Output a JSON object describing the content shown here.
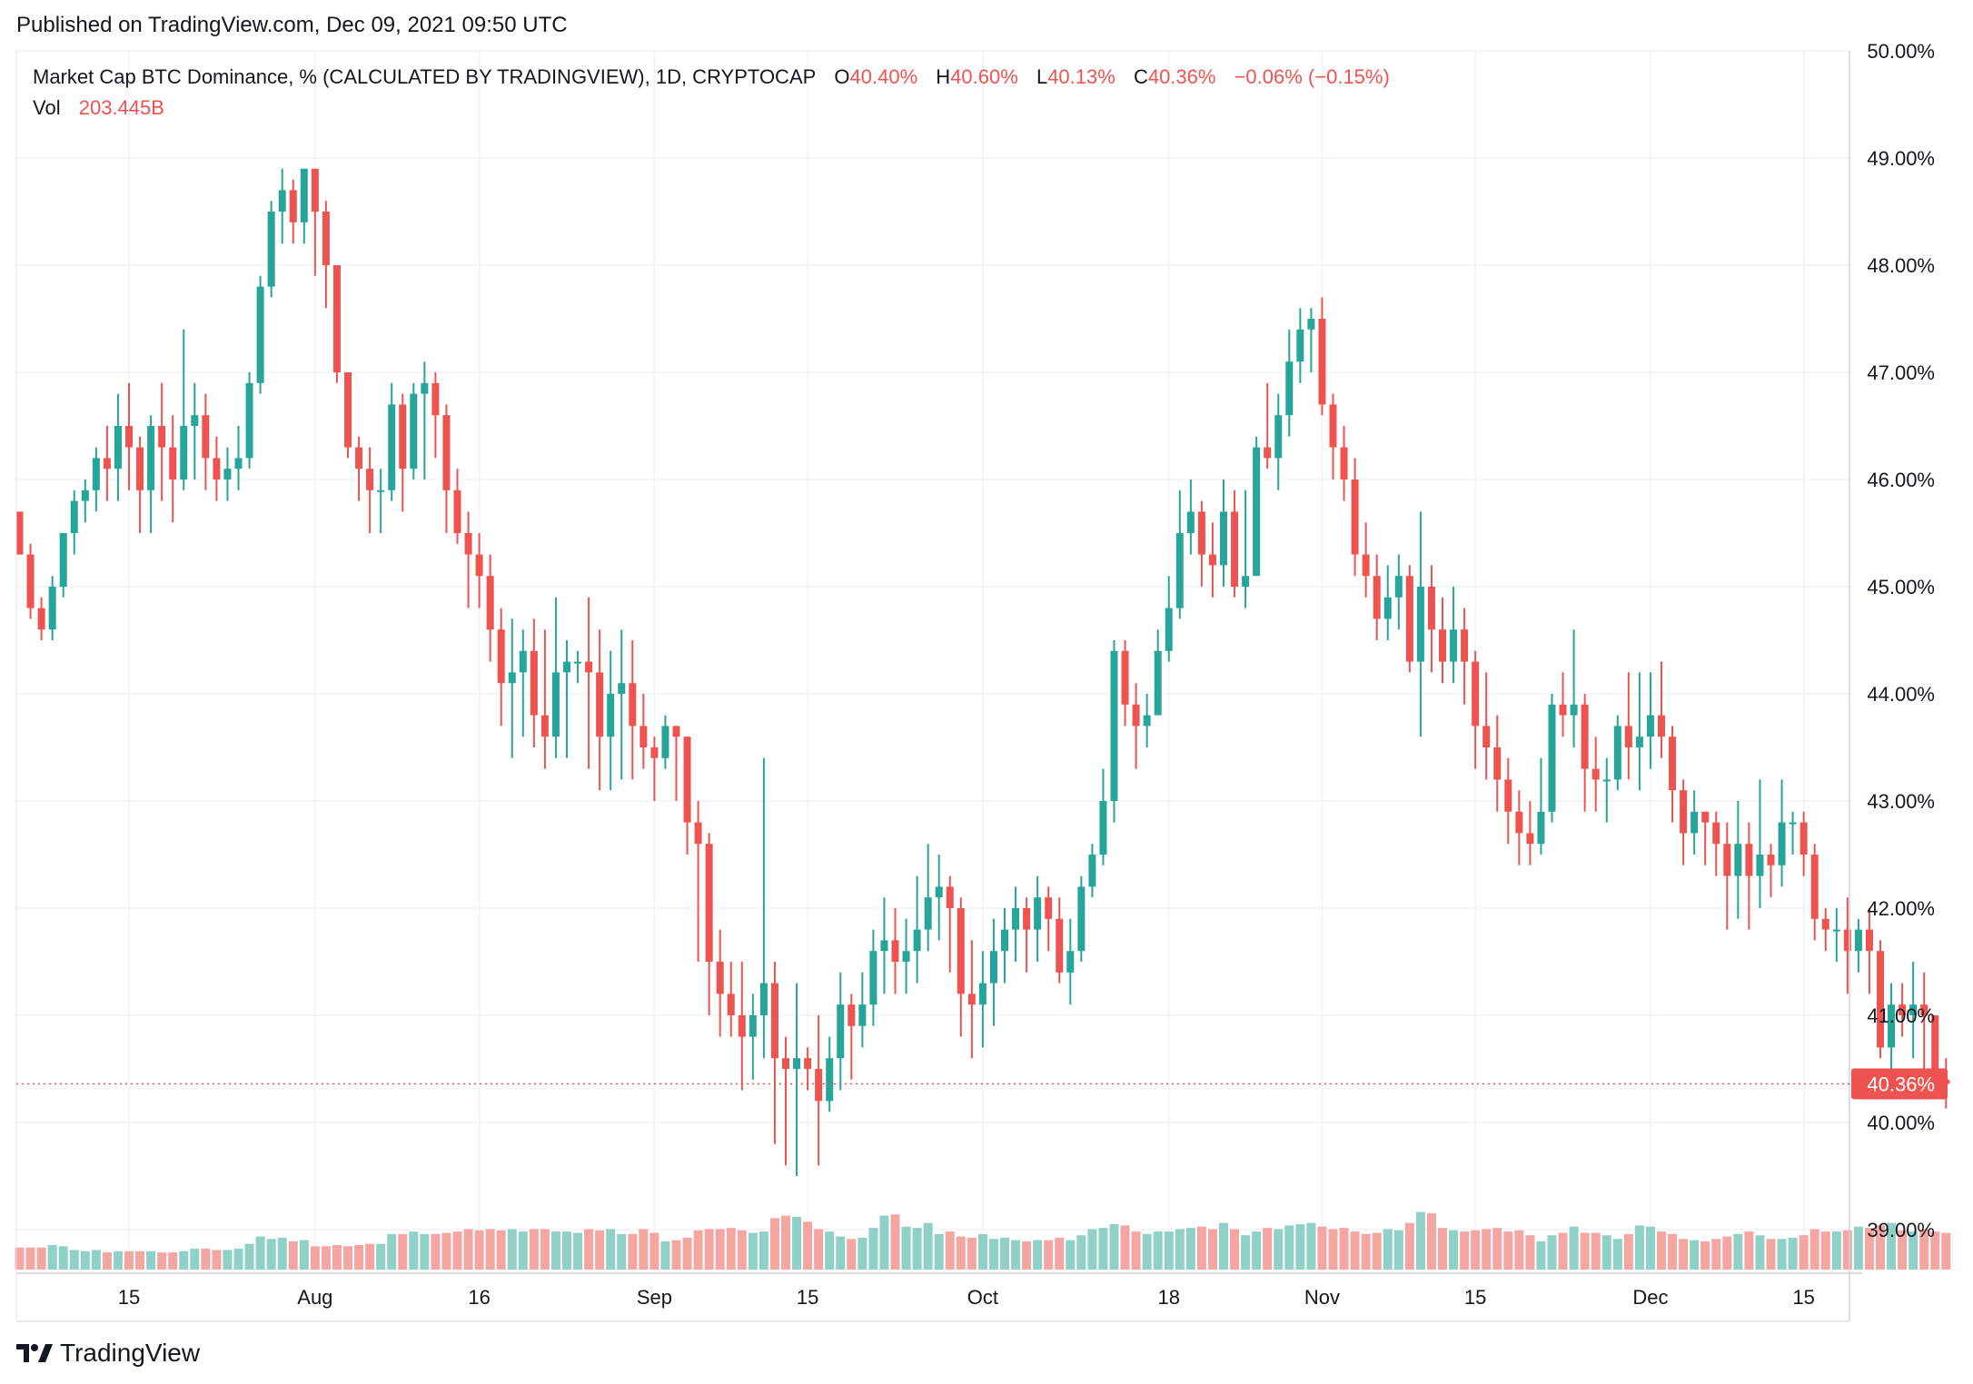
{
  "header": {
    "published": "Published on TradingView.com, Dec 09, 2021 09:50 UTC"
  },
  "legend": {
    "title": "Market Cap BTC Dominance, % (CALCULATED BY TRADINGVIEW), 1D, CRYPTOCAP",
    "o_label": "O",
    "o_value": "40.40%",
    "h_label": "H",
    "h_value": "40.60%",
    "l_label": "L",
    "l_value": "40.13%",
    "c_label": "C",
    "c_value": "40.36%",
    "change": "−0.06% (−0.15%)",
    "vol_label": "Vol",
    "vol_value": "203.445B"
  },
  "footer": {
    "brand": "TradingView"
  },
  "colors": {
    "up": "#26a69a",
    "down": "#ef5350",
    "vol_up": "#8fd0c7",
    "vol_down": "#f5a5a2",
    "grid": "#f0f3fa",
    "axis_text": "#131722",
    "price_line": "#ef5350"
  },
  "chart_data": {
    "type": "candlestick",
    "title": "Market Cap BTC Dominance, % (CALCULATED BY TRADINGVIEW), 1D, CRYPTOCAP",
    "ylim": [
      38.6,
      50.1
    ],
    "y_ticks": [
      "50.00%",
      "49.00%",
      "48.00%",
      "47.00%",
      "46.00%",
      "45.00%",
      "44.00%",
      "43.00%",
      "42.00%",
      "41.00%",
      "40.00%",
      "39.00%"
    ],
    "x_ticks": [
      {
        "label": "15",
        "day": 0
      },
      {
        "label": "Aug",
        "day": 17
      },
      {
        "label": "16",
        "day": 32
      },
      {
        "label": "Sep",
        "day": 48
      },
      {
        "label": "15",
        "day": 62
      },
      {
        "label": "Oct",
        "day": 78
      },
      {
        "label": "18",
        "day": 95
      },
      {
        "label": "Nov",
        "day": 109
      },
      {
        "label": "15",
        "day": 123
      },
      {
        "label": "Dec",
        "day": 139
      },
      {
        "label": "15",
        "day": 153
      }
    ],
    "first_day": -10,
    "last_price": "40.36%",
    "last_close": 40.36,
    "volume_unit": "B",
    "volume_max": 200,
    "candles": [
      [
        45.7,
        45.3,
        45.7,
        45.3,
        18
      ],
      [
        45.3,
        44.8,
        45.4,
        44.7,
        18
      ],
      [
        44.8,
        44.6,
        44.9,
        44.5,
        18
      ],
      [
        44.6,
        45.0,
        45.1,
        44.5,
        20
      ],
      [
        45.0,
        45.5,
        45.5,
        44.9,
        19
      ],
      [
        45.5,
        45.8,
        45.9,
        45.3,
        16
      ],
      [
        45.8,
        45.9,
        46.0,
        45.6,
        15
      ],
      [
        45.9,
        46.2,
        46.3,
        45.7,
        16
      ],
      [
        46.2,
        46.1,
        46.5,
        45.8,
        14
      ],
      [
        46.1,
        46.5,
        46.8,
        45.8,
        15
      ],
      [
        46.5,
        46.3,
        46.9,
        45.9,
        15
      ],
      [
        46.3,
        45.9,
        46.4,
        45.5,
        15
      ],
      [
        45.9,
        46.5,
        46.6,
        45.5,
        15
      ],
      [
        46.5,
        46.3,
        46.9,
        45.8,
        14
      ],
      [
        46.3,
        46.0,
        46.6,
        45.6,
        14
      ],
      [
        46.0,
        46.5,
        47.4,
        45.9,
        15
      ],
      [
        46.5,
        46.6,
        46.9,
        46.0,
        17
      ],
      [
        46.6,
        46.2,
        46.8,
        45.9,
        17
      ],
      [
        46.2,
        46.0,
        46.4,
        45.8,
        16
      ],
      [
        46.0,
        46.1,
        46.3,
        45.8,
        16
      ],
      [
        46.1,
        46.2,
        46.5,
        45.9,
        17
      ],
      [
        46.2,
        46.9,
        47.0,
        46.1,
        21
      ],
      [
        46.9,
        47.8,
        47.9,
        46.8,
        27
      ],
      [
        47.8,
        48.5,
        48.6,
        47.7,
        25
      ],
      [
        48.5,
        48.7,
        48.9,
        48.2,
        26
      ],
      [
        48.7,
        48.4,
        48.8,
        48.2,
        23
      ],
      [
        48.4,
        48.9,
        48.9,
        48.2,
        24
      ],
      [
        48.9,
        48.5,
        48.8,
        47.9,
        19
      ],
      [
        48.5,
        48.0,
        48.6,
        47.6,
        19
      ],
      [
        48.0,
        47.0,
        48.0,
        46.9,
        20
      ],
      [
        47.0,
        46.3,
        47.0,
        46.2,
        19
      ],
      [
        46.3,
        46.1,
        46.4,
        45.8,
        20
      ],
      [
        46.1,
        45.9,
        46.3,
        45.5,
        21
      ],
      [
        45.9,
        45.9,
        46.1,
        45.5,
        21
      ],
      [
        45.9,
        46.7,
        46.9,
        45.8,
        29
      ],
      [
        46.7,
        46.1,
        46.8,
        45.7,
        29
      ],
      [
        46.1,
        46.8,
        46.9,
        46.0,
        31
      ],
      [
        46.8,
        46.9,
        47.1,
        46.0,
        29
      ],
      [
        46.9,
        46.6,
        47.0,
        46.2,
        29
      ],
      [
        46.6,
        45.9,
        46.7,
        45.5,
        30
      ],
      [
        45.9,
        45.5,
        46.1,
        45.4,
        31
      ],
      [
        45.5,
        45.3,
        45.7,
        44.8,
        33
      ],
      [
        45.3,
        45.1,
        45.5,
        44.8,
        32
      ],
      [
        45.1,
        44.6,
        45.3,
        44.3,
        33
      ],
      [
        44.6,
        44.1,
        44.8,
        43.7,
        32
      ],
      [
        44.1,
        44.2,
        44.7,
        43.4,
        33
      ],
      [
        44.2,
        44.4,
        44.6,
        43.6,
        31
      ],
      [
        44.4,
        43.8,
        44.7,
        43.5,
        33
      ],
      [
        43.8,
        43.6,
        44.6,
        43.3,
        33
      ],
      [
        43.6,
        44.2,
        44.9,
        43.4,
        31
      ],
      [
        44.2,
        44.3,
        44.5,
        43.4,
        31
      ],
      [
        44.3,
        44.3,
        44.4,
        44.1,
        30
      ],
      [
        44.3,
        44.2,
        44.9,
        43.3,
        33
      ],
      [
        44.2,
        43.6,
        44.6,
        43.1,
        32
      ],
      [
        43.6,
        44.0,
        44.4,
        43.1,
        33
      ],
      [
        44.0,
        44.1,
        44.6,
        43.2,
        29
      ],
      [
        44.1,
        43.7,
        44.5,
        43.2,
        29
      ],
      [
        43.7,
        43.5,
        44.0,
        43.3,
        33
      ],
      [
        43.5,
        43.4,
        43.6,
        43.0,
        30
      ],
      [
        43.4,
        43.7,
        43.8,
        43.3,
        23
      ],
      [
        43.7,
        43.6,
        43.7,
        43.0,
        24
      ],
      [
        43.6,
        42.8,
        43.6,
        42.5,
        26
      ],
      [
        42.8,
        42.6,
        43.0,
        41.5,
        32
      ],
      [
        42.6,
        41.5,
        42.7,
        41.0,
        33
      ],
      [
        41.5,
        41.2,
        41.8,
        40.8,
        33
      ],
      [
        41.2,
        41.0,
        41.5,
        40.8,
        34
      ],
      [
        41.0,
        40.8,
        41.5,
        40.3,
        32
      ],
      [
        40.8,
        41.0,
        41.2,
        40.4,
        30
      ],
      [
        41.0,
        41.3,
        43.4,
        40.6,
        31
      ],
      [
        41.3,
        40.6,
        41.5,
        39.8,
        42
      ],
      [
        40.6,
        40.5,
        40.8,
        39.6,
        44
      ],
      [
        40.5,
        40.6,
        41.3,
        39.5,
        43
      ],
      [
        40.6,
        40.5,
        40.7,
        40.3,
        39
      ],
      [
        40.5,
        40.2,
        41.0,
        39.6,
        33
      ],
      [
        40.2,
        40.6,
        40.8,
        40.1,
        31
      ],
      [
        40.6,
        41.1,
        41.4,
        40.3,
        27
      ],
      [
        41.1,
        40.9,
        41.2,
        40.4,
        25
      ],
      [
        40.9,
        41.1,
        41.4,
        40.7,
        26
      ],
      [
        41.1,
        41.6,
        41.8,
        40.9,
        34
      ],
      [
        41.6,
        41.7,
        42.1,
        41.2,
        44
      ],
      [
        41.7,
        41.5,
        42.0,
        41.2,
        45
      ],
      [
        41.5,
        41.6,
        41.9,
        41.2,
        35
      ],
      [
        41.6,
        41.8,
        42.3,
        41.3,
        34
      ],
      [
        41.8,
        42.1,
        42.6,
        41.6,
        38
      ],
      [
        42.1,
        42.2,
        42.5,
        41.7,
        29
      ],
      [
        42.2,
        42.0,
        42.3,
        41.4,
        31
      ],
      [
        42.0,
        41.2,
        42.1,
        40.8,
        27
      ],
      [
        41.2,
        41.1,
        41.7,
        40.6,
        26
      ],
      [
        41.1,
        41.3,
        41.6,
        40.7,
        29
      ],
      [
        41.3,
        41.6,
        41.9,
        40.9,
        25
      ],
      [
        41.6,
        41.8,
        42.0,
        41.3,
        26
      ],
      [
        41.8,
        42.0,
        42.2,
        41.5,
        24
      ],
      [
        42.0,
        41.8,
        42.1,
        41.4,
        23
      ],
      [
        41.8,
        42.1,
        42.3,
        41.5,
        24
      ],
      [
        42.1,
        41.9,
        42.2,
        41.6,
        24
      ],
      [
        41.9,
        41.4,
        42.1,
        41.3,
        26
      ],
      [
        41.4,
        41.6,
        41.9,
        41.1,
        24
      ],
      [
        41.6,
        42.2,
        42.3,
        41.5,
        28
      ],
      [
        42.2,
        42.5,
        42.6,
        42.1,
        33
      ],
      [
        42.5,
        43.0,
        43.3,
        42.4,
        34
      ],
      [
        43.0,
        44.4,
        44.5,
        42.8,
        37
      ],
      [
        44.4,
        43.9,
        44.5,
        43.7,
        36
      ],
      [
        43.9,
        43.7,
        44.1,
        43.3,
        31
      ],
      [
        43.7,
        43.8,
        44.0,
        43.5,
        29
      ],
      [
        43.8,
        44.4,
        44.6,
        43.9,
        31
      ],
      [
        44.4,
        44.8,
        45.1,
        44.3,
        31
      ],
      [
        44.8,
        45.5,
        45.9,
        44.7,
        33
      ],
      [
        45.5,
        45.7,
        46.0,
        45.3,
        34
      ],
      [
        45.7,
        45.3,
        45.8,
        45.0,
        35
      ],
      [
        45.3,
        45.2,
        45.6,
        44.9,
        33
      ],
      [
        45.2,
        45.7,
        46.0,
        45.0,
        38
      ],
      [
        45.7,
        45.0,
        45.9,
        44.9,
        33
      ],
      [
        45.0,
        45.1,
        45.9,
        44.8,
        28
      ],
      [
        45.1,
        46.3,
        46.4,
        45.2,
        31
      ],
      [
        46.3,
        46.2,
        46.9,
        46.1,
        34
      ],
      [
        46.2,
        46.6,
        46.8,
        45.9,
        33
      ],
      [
        46.6,
        47.1,
        47.4,
        46.4,
        36
      ],
      [
        47.1,
        47.4,
        47.6,
        46.9,
        37
      ],
      [
        47.4,
        47.5,
        47.6,
        47.0,
        38
      ],
      [
        47.5,
        46.7,
        47.7,
        46.6,
        35
      ],
      [
        46.7,
        46.3,
        46.8,
        46.0,
        33
      ],
      [
        46.3,
        46.0,
        46.5,
        45.8,
        34
      ],
      [
        46.0,
        45.3,
        46.2,
        45.1,
        31
      ],
      [
        45.3,
        45.1,
        45.6,
        44.9,
        29
      ],
      [
        45.1,
        44.7,
        45.3,
        44.5,
        30
      ],
      [
        44.7,
        44.9,
        45.2,
        44.5,
        33
      ],
      [
        44.9,
        45.1,
        45.3,
        44.6,
        32
      ],
      [
        45.1,
        44.3,
        45.2,
        44.2,
        38
      ],
      [
        44.3,
        45.0,
        45.7,
        43.6,
        47
      ],
      [
        45.0,
        44.6,
        45.2,
        44.2,
        46
      ],
      [
        44.6,
        44.3,
        44.9,
        44.1,
        34
      ],
      [
        44.3,
        44.6,
        45.0,
        44.1,
        32
      ],
      [
        44.6,
        44.3,
        44.8,
        43.9,
        31
      ],
      [
        44.3,
        43.7,
        44.4,
        43.3,
        32
      ],
      [
        43.7,
        43.5,
        44.2,
        43.2,
        33
      ],
      [
        43.5,
        43.2,
        43.8,
        42.9,
        34
      ],
      [
        43.2,
        42.9,
        43.4,
        42.6,
        31
      ],
      [
        42.9,
        42.7,
        43.1,
        42.4,
        32
      ],
      [
        42.7,
        42.6,
        43.0,
        42.4,
        28
      ],
      [
        42.6,
        42.9,
        43.4,
        42.5,
        23
      ],
      [
        42.9,
        43.9,
        44.0,
        42.8,
        28
      ],
      [
        43.9,
        43.8,
        44.2,
        43.6,
        30
      ],
      [
        43.8,
        43.9,
        44.6,
        43.5,
        35
      ],
      [
        43.9,
        43.3,
        44.0,
        42.9,
        30
      ],
      [
        43.3,
        43.2,
        43.6,
        42.9,
        30
      ],
      [
        43.2,
        43.2,
        43.4,
        42.8,
        28
      ],
      [
        43.2,
        43.7,
        43.8,
        43.1,
        25
      ],
      [
        43.7,
        43.5,
        44.2,
        43.2,
        29
      ],
      [
        43.5,
        43.6,
        44.2,
        43.1,
        36
      ],
      [
        43.6,
        43.8,
        44.2,
        43.3,
        35
      ],
      [
        43.8,
        43.6,
        44.3,
        43.4,
        31
      ],
      [
        43.6,
        43.1,
        43.7,
        42.8,
        29
      ],
      [
        43.1,
        42.7,
        43.2,
        42.4,
        25
      ],
      [
        42.7,
        42.9,
        43.1,
        42.5,
        24
      ],
      [
        42.9,
        42.8,
        42.9,
        42.4,
        23
      ],
      [
        42.8,
        42.6,
        42.9,
        42.3,
        25
      ],
      [
        42.6,
        42.3,
        42.8,
        41.8,
        27
      ],
      [
        42.3,
        42.6,
        43.0,
        41.9,
        29
      ],
      [
        42.6,
        42.3,
        42.8,
        41.8,
        31
      ],
      [
        42.3,
        42.5,
        43.2,
        42.0,
        28
      ],
      [
        42.5,
        42.4,
        42.6,
        42.1,
        25
      ],
      [
        42.4,
        42.8,
        43.2,
        42.2,
        25
      ],
      [
        42.8,
        42.8,
        42.9,
        42.5,
        26
      ],
      [
        42.8,
        42.5,
        42.9,
        42.3,
        28
      ],
      [
        42.5,
        41.9,
        42.6,
        41.7,
        33
      ],
      [
        41.9,
        41.8,
        42.0,
        41.6,
        31
      ],
      [
        41.8,
        41.8,
        42.0,
        41.5,
        31
      ],
      [
        41.8,
        41.6,
        42.1,
        41.2,
        32
      ],
      [
        41.6,
        41.8,
        41.9,
        41.4,
        35
      ],
      [
        41.8,
        41.6,
        42.0,
        41.2,
        34
      ],
      [
        41.6,
        40.7,
        41.7,
        40.6,
        36
      ],
      [
        40.7,
        41.1,
        41.3,
        40.3,
        38
      ],
      [
        41.1,
        41.0,
        41.3,
        40.8,
        32
      ],
      [
        41.0,
        41.1,
        41.5,
        40.6,
        31
      ],
      [
        41.1,
        41.0,
        41.4,
        40.5,
        33
      ],
      [
        41.0,
        40.4,
        41.0,
        40.3,
        31
      ],
      [
        40.4,
        40.36,
        40.6,
        40.13,
        30
      ]
    ]
  }
}
